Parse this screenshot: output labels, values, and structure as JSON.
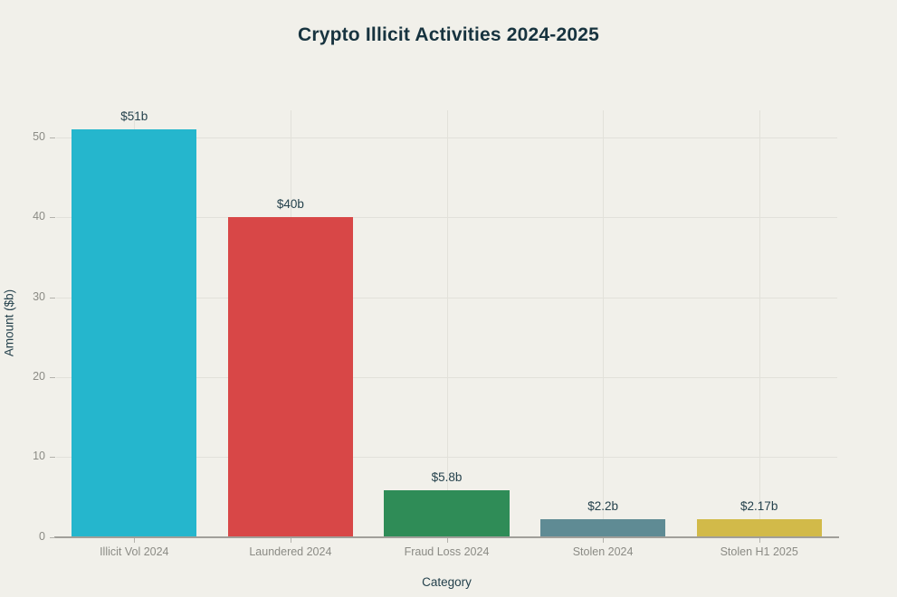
{
  "chart_data": {
    "type": "bar",
    "title": "Crypto Illicit Activities 2024-2025",
    "xlabel": "Category",
    "ylabel": "Amount ($b)",
    "categories": [
      "Illicit Vol 2024",
      "Laundered 2024",
      "Fraud Loss 2024",
      "Stolen 2024",
      "Stolen H1 2025"
    ],
    "values": [
      51,
      40,
      5.8,
      2.2,
      2.17
    ],
    "value_labels": [
      "$51b",
      "$40b",
      "$5.8b",
      "$2.2b",
      "$2.17b"
    ],
    "bar_colors": [
      "#25b6cd",
      "#d84747",
      "#2f8c57",
      "#5f8b94",
      "#d2ba49"
    ],
    "yticks": [
      0,
      10,
      20,
      30,
      40,
      50
    ],
    "ylim": [
      0,
      53.4
    ],
    "grid": true,
    "legend": "none",
    "colors": {
      "background": "#f1f0ea",
      "title_text": "#17333f",
      "value_label_text": "#24414c",
      "tick_label_text": "#8b8b85",
      "gridline": "#e2e1da",
      "axis_line": "#a19f9a"
    }
  }
}
